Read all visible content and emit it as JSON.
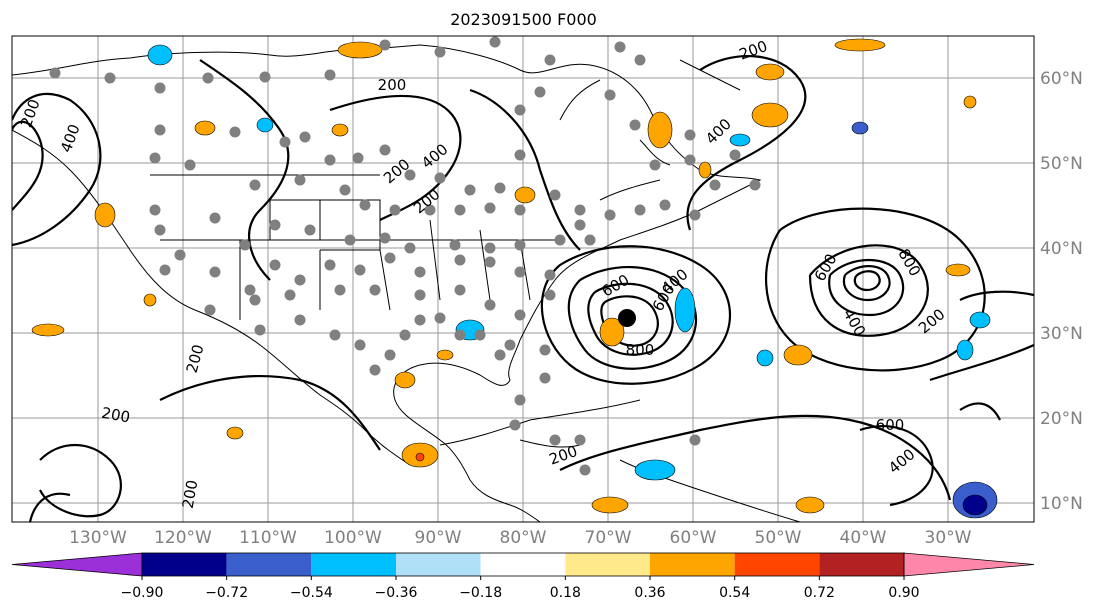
{
  "title": "2023091500 F000",
  "lat_labels": [
    "60°N",
    "50°N",
    "40°N",
    "30°N",
    "20°N",
    "10°N"
  ],
  "lon_labels": [
    "130°W",
    "120°W",
    "110°W",
    "100°W",
    "90°W",
    "80°W",
    "70°W",
    "60°W",
    "50°W",
    "40°W",
    "30°W"
  ],
  "contour_labels": [
    "200",
    "200",
    "400",
    "200",
    "400",
    "600",
    "800",
    "600",
    "400",
    "200",
    "200",
    "400",
    "600",
    "800",
    "400",
    "200",
    "600",
    "400",
    "200",
    "200",
    "200",
    "200"
  ],
  "colorbar": {
    "labels": [
      "−0.90",
      "−0.72",
      "−0.54",
      "−0.36",
      "−0.18",
      "0.18",
      "0.36",
      "0.54",
      "0.72",
      "0.90"
    ],
    "colors": [
      "#9b30d9",
      "#00008b",
      "#3a5fcd",
      "#00bfff",
      "#b0e0f8",
      "#ffffff",
      "#ffe98a",
      "#ffa500",
      "#ff4500",
      "#b22222",
      "#ff88aa"
    ]
  },
  "colors": {
    "positive_fill": "#ffa500",
    "negative_fill": "#00bfff",
    "station_dot": "#808080",
    "grid": "#9a9a9a"
  }
}
